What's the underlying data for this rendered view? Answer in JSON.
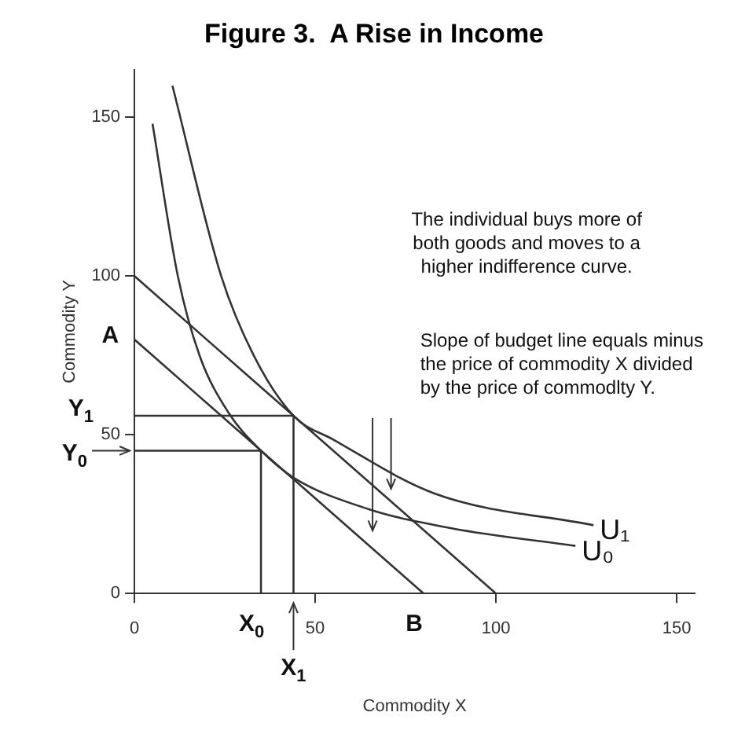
{
  "chart_data": {
    "type": "line",
    "title": "Figure 3.  A Rise in Income",
    "xlabel": "Commodity X",
    "ylabel": "Commodity Y",
    "xlim": [
      0,
      155
    ],
    "ylim": [
      0,
      165
    ],
    "xticks": [
      0,
      50,
      100,
      150
    ],
    "yticks": [
      0,
      50,
      100,
      150
    ],
    "grid": false,
    "legend": false,
    "marker": "none",
    "line_style": "solid",
    "series": [
      {
        "name": "U₀",
        "color": "#333333",
        "x": [
          5,
          12,
          18,
          26,
          35,
          44,
          65,
          88,
          122
        ],
        "values": [
          148,
          100,
          75,
          57,
          45,
          36.5,
          26.5,
          20.5,
          15
        ]
      },
      {
        "name": "U₁",
        "color": "#333333",
        "x": [
          10.5,
          24,
          33,
          44,
          55,
          83,
          127
        ],
        "values": [
          160,
          100,
          75,
          56,
          48.5,
          31.5,
          21.5
        ]
      },
      {
        "color": "#333333",
        "x": [
          0,
          100
        ],
        "values": [
          100,
          0
        ]
      },
      {
        "color": "#333333",
        "x": [
          0,
          80
        ],
        "values": [
          80,
          0
        ]
      },
      {
        "color": "#333333",
        "x": [
          35,
          35,
          0
        ],
        "values": [
          0,
          45,
          45
        ]
      },
      {
        "color": "#333333",
        "x": [
          44,
          44,
          0
        ],
        "values": [
          0,
          56,
          56
        ]
      }
    ],
    "annotations": [
      "The individual buys more of\nboth goods and moves to a\nhigher indifference curve.",
      "Slope of budget line equals minus\nthe price of commodity X divided\nby the price of commodlty Y.",
      {
        "text": "A",
        "x": 0,
        "y": 80
      },
      {
        "text": "B",
        "x": 80,
        "y": 0
      },
      {
        "text": "X$_{0}$",
        "x": 35,
        "y": 0
      },
      {
        "text": "X$_{1}$",
        "x": 44,
        "y": 0
      },
      {
        "text": "Y$_{0}$",
        "x": 0,
        "y": 45
      },
      {
        "text": "Y$_{1}$",
        "x": 0,
        "y": 56
      }
    ]
  }
}
